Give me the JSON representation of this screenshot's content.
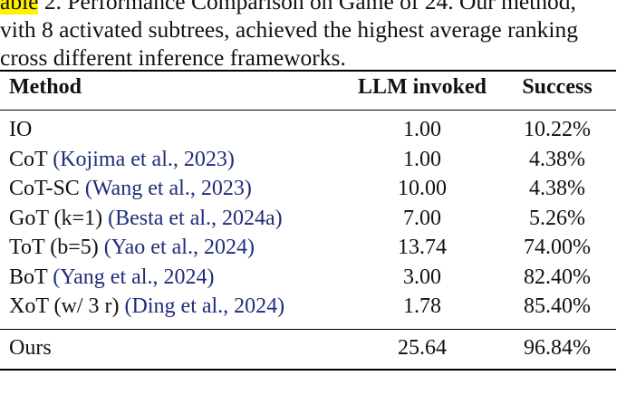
{
  "caption": {
    "lines": [
      {
        "highlight": "able",
        "text": " 2. Performance Comparison on Game of 24. Our method,"
      },
      {
        "highlight": "",
        "text": "vith 8 activated subtrees, achieved the highest average ranking"
      },
      {
        "highlight": "",
        "text": "cross different inference frameworks."
      }
    ]
  },
  "table": {
    "headers": {
      "method": "Method",
      "llm": "LLM invoked",
      "success": "Success"
    },
    "rows": [
      {
        "name": "IO",
        "cite": "",
        "llm": "1.00",
        "success": "10.22%"
      },
      {
        "name": "CoT ",
        "cite": "(Kojima et al., 2023)",
        "llm": "1.00",
        "success": "4.38%"
      },
      {
        "name": "CoT-SC ",
        "cite": "(Wang et al., 2023)",
        "llm": "10.00",
        "success": "4.38%"
      },
      {
        "name": "GoT (k=1) ",
        "cite": "(Besta et al., 2024a)",
        "llm": "7.00",
        "success": "5.26%"
      },
      {
        "name": "ToT (b=5) ",
        "cite": "(Yao et al., 2024)",
        "llm": "13.74",
        "success": "74.00%"
      },
      {
        "name": "BoT ",
        "cite": "(Yang et al., 2024)",
        "llm": "3.00",
        "success": "82.40%"
      },
      {
        "name": "XoT (w/ 3 r) ",
        "cite": "(Ding et al., 2024)",
        "llm": "1.78",
        "success": "85.40%"
      }
    ],
    "ours": {
      "name": "Ours",
      "llm": "25.64",
      "success": "96.84%"
    }
  },
  "colors": {
    "highlight": "#fff200",
    "citation": "#1f2d7a",
    "text": "#111111"
  }
}
